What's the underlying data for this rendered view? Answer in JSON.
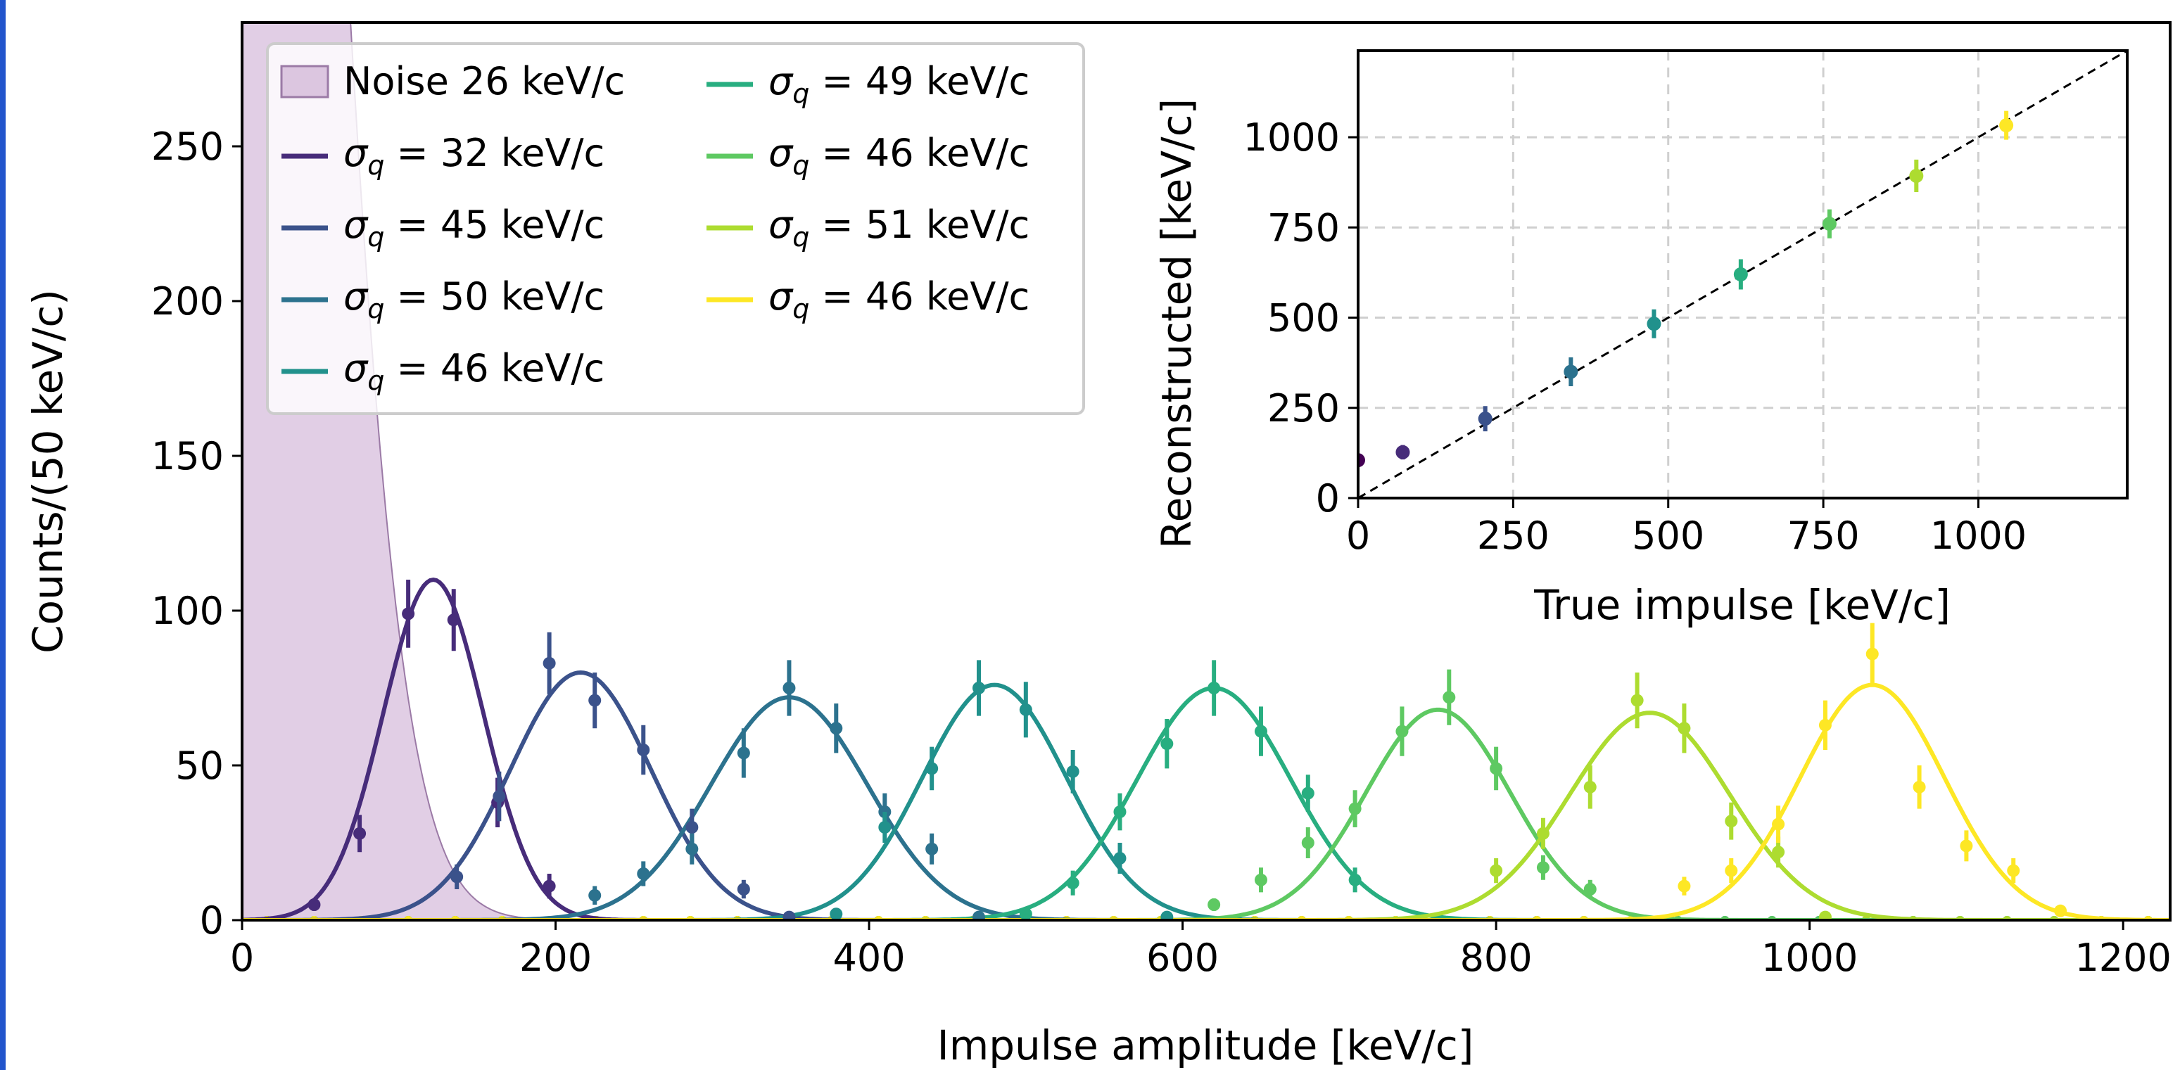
{
  "chart_data": [
    {
      "type": "line",
      "xlabel": "Impulse amplitude [keV/c]",
      "ylabel": "Counts/(50 keV/c)",
      "xlim": [
        0,
        1230
      ],
      "ylim": [
        0,
        290
      ],
      "xticks": [
        0,
        200,
        400,
        600,
        800,
        1000,
        1200
      ],
      "yticks": [
        0,
        50,
        100,
        150,
        200,
        250
      ],
      "grid": false,
      "legend_position": "top-left",
      "noise": {
        "label": "Noise 26 keV/c",
        "color": "#dcc6e0",
        "edge_color": "#9b7aa6",
        "amplitude": 820,
        "mean": 0,
        "sigma": 48
      },
      "series": [
        {
          "label": "σq = 32 keV/c",
          "sigma_text": "32",
          "color": "#472c7a",
          "amplitude": 110,
          "mean": 122,
          "sigma": 32,
          "points": [
            [
              46,
              5,
              2
            ],
            [
              75,
              28,
              6
            ],
            [
              106,
              99,
              11
            ],
            [
              135,
              97,
              10
            ],
            [
              163,
              38,
              8
            ],
            [
              196,
              11,
              4
            ]
          ]
        },
        {
          "label": "σq = 45 keV/c",
          "sigma_text": "45",
          "color": "#3b528b",
          "amplitude": 80,
          "mean": 216,
          "sigma": 45,
          "points": [
            [
              137,
              14,
              4
            ],
            [
              164,
              40,
              8
            ],
            [
              196,
              83,
              10
            ],
            [
              225,
              71,
              9
            ],
            [
              256,
              55,
              8
            ],
            [
              287,
              30,
              6
            ],
            [
              320,
              10,
              3
            ],
            [
              349,
              1,
              1
            ]
          ]
        },
        {
          "label": "σq = 50 keV/c",
          "sigma_text": "50",
          "color": "#2c728e",
          "amplitude": 72,
          "mean": 349,
          "sigma": 50,
          "points": [
            [
              225,
              8,
              3
            ],
            [
              256,
              15,
              4
            ],
            [
              287,
              23,
              5
            ],
            [
              320,
              54,
              8
            ],
            [
              349,
              75,
              9
            ],
            [
              379,
              62,
              8
            ],
            [
              410,
              35,
              6
            ],
            [
              440,
              23,
              5
            ],
            [
              470,
              1,
              1
            ]
          ]
        },
        {
          "label": "σq = 46 keV/c",
          "sigma_text": "46",
          "color": "#21918c",
          "amplitude": 76,
          "mean": 480,
          "sigma": 46,
          "points": [
            [
              379,
              2,
              1
            ],
            [
              410,
              30,
              5
            ],
            [
              440,
              49,
              7
            ],
            [
              470,
              75,
              9
            ],
            [
              500,
              68,
              9
            ],
            [
              530,
              48,
              7
            ],
            [
              560,
              20,
              5
            ],
            [
              590,
              1,
              1
            ]
          ]
        },
        {
          "label": "σq = 49 keV/c",
          "sigma_text": "49",
          "color": "#28ae80",
          "amplitude": 75,
          "mean": 620,
          "sigma": 49,
          "points": [
            [
              500,
              2,
              1
            ],
            [
              530,
              12,
              4
            ],
            [
              560,
              35,
              6
            ],
            [
              590,
              57,
              8
            ],
            [
              620,
              75,
              9
            ],
            [
              650,
              61,
              8
            ],
            [
              680,
              41,
              6
            ],
            [
              710,
              13,
              4
            ]
          ]
        },
        {
          "label": "σq = 46 keV/c",
          "sigma_text": "46",
          "color": "#5ec962",
          "amplitude": 68,
          "mean": 763,
          "sigma": 46,
          "points": [
            [
              620,
              5,
              2
            ],
            [
              650,
              13,
              4
            ],
            [
              680,
              25,
              5
            ],
            [
              710,
              36,
              6
            ],
            [
              740,
              61,
              8
            ],
            [
              770,
              72,
              9
            ],
            [
              800,
              49,
              7
            ],
            [
              830,
              17,
              4
            ],
            [
              860,
              10,
              3
            ]
          ]
        },
        {
          "label": "σq = 51 keV/c",
          "sigma_text": "51",
          "color": "#addc30",
          "amplitude": 67,
          "mean": 898,
          "sigma": 51,
          "points": [
            [
              800,
              16,
              4
            ],
            [
              830,
              28,
              5
            ],
            [
              860,
              43,
              7
            ],
            [
              890,
              71,
              9
            ],
            [
              920,
              62,
              8
            ],
            [
              950,
              32,
              6
            ],
            [
              980,
              22,
              5
            ],
            [
              1010,
              1,
              1
            ]
          ]
        },
        {
          "label": "σq = 46 keV/c",
          "sigma_text": "46",
          "color": "#fde725",
          "amplitude": 76,
          "mean": 1040,
          "sigma": 46,
          "points": [
            [
              920,
              11,
              3
            ],
            [
              950,
              16,
              4
            ],
            [
              980,
              31,
              6
            ],
            [
              1010,
              63,
              8
            ],
            [
              1040,
              86,
              10
            ],
            [
              1070,
              43,
              7
            ],
            [
              1100,
              24,
              5
            ],
            [
              1130,
              16,
              4
            ],
            [
              1160,
              3,
              1
            ]
          ]
        }
      ]
    },
    {
      "type": "scatter",
      "xlabel": "True impulse [keV/c]",
      "ylabel": "Reconstructed [keV/c]",
      "xlim": [
        0,
        1240
      ],
      "ylim": [
        0,
        1240
      ],
      "xticks": [
        0,
        250,
        500,
        750,
        1000
      ],
      "yticks": [
        0,
        250,
        500,
        750,
        1000
      ],
      "grid": true,
      "reference_line": "y = x",
      "points": [
        {
          "x": 0,
          "y": 105,
          "err": 12,
          "color": "#440154"
        },
        {
          "x": 72,
          "y": 127,
          "err": 20,
          "color": "#472c7a"
        },
        {
          "x": 205,
          "y": 220,
          "err": 35,
          "color": "#3b528b"
        },
        {
          "x": 343,
          "y": 350,
          "err": 40,
          "color": "#2c728e"
        },
        {
          "x": 477,
          "y": 483,
          "err": 40,
          "color": "#21918c"
        },
        {
          "x": 617,
          "y": 620,
          "err": 42,
          "color": "#28ae80"
        },
        {
          "x": 760,
          "y": 760,
          "err": 40,
          "color": "#5ec962"
        },
        {
          "x": 900,
          "y": 893,
          "err": 45,
          "color": "#addc30"
        },
        {
          "x": 1045,
          "y": 1033,
          "err": 40,
          "color": "#fde725"
        }
      ]
    }
  ]
}
